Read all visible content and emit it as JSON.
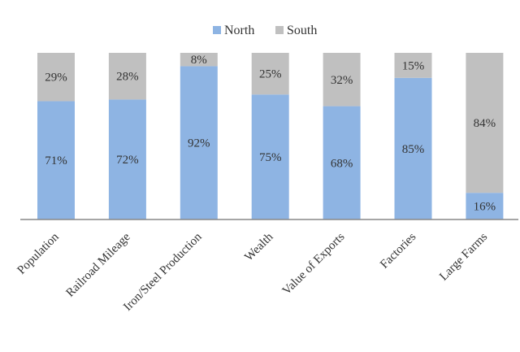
{
  "chart_data": {
    "type": "bar",
    "stacked": true,
    "percent_stacked": true,
    "categories": [
      "Population",
      "Railroad Mileage",
      "Iron/Steel Production",
      "Wealth",
      "Value of Exports",
      "Factories",
      "Large Farms"
    ],
    "series": [
      {
        "name": "North",
        "values": [
          71,
          72,
          92,
          75,
          68,
          85,
          16
        ],
        "labels": [
          "71%",
          "72%",
          "92%",
          "75%",
          "68%",
          "85%",
          "16%"
        ],
        "color": "#8eb4e3"
      },
      {
        "name": "South",
        "values": [
          29,
          28,
          8,
          25,
          32,
          15,
          84
        ],
        "labels": [
          "29%",
          "28%",
          "8%",
          "25%",
          "32%",
          "15%",
          "84%"
        ],
        "color": "#c0c0c0"
      }
    ],
    "ylim": [
      0,
      100
    ],
    "grid": false,
    "legend_position": "top-center",
    "x_tick_rotation": -45
  }
}
